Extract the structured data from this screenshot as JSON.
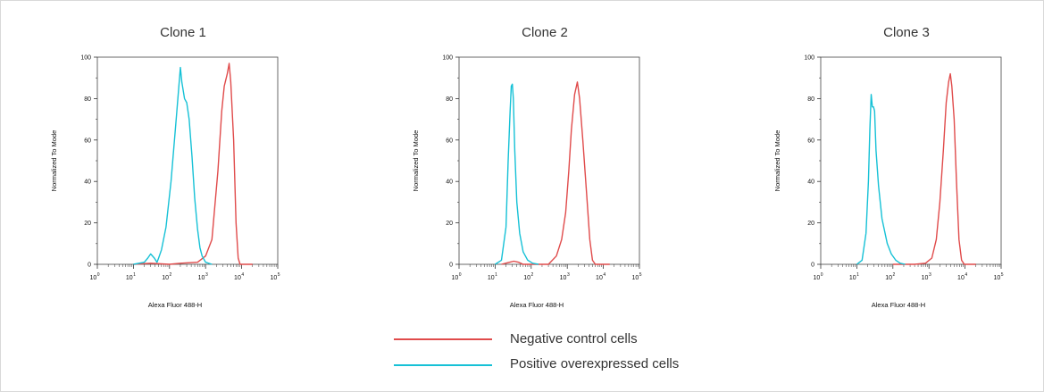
{
  "chart_data": [
    {
      "type": "line",
      "title": "Clone 1",
      "xlabel": "Alexa Fluor 488-H",
      "ylabel": "Normalized To Mode",
      "xscale": "log",
      "xlim": [
        1,
        100000
      ],
      "ylim": [
        0,
        100
      ],
      "x_ticks": [
        "10^0",
        "10^1",
        "10^2",
        "10^3",
        "10^4",
        "10^5"
      ],
      "y_ticks": [
        "0",
        "20",
        "40",
        "60",
        "80",
        "100"
      ],
      "series": [
        {
          "name": "Negative control cells",
          "color": "#e04b4b",
          "points": [
            [
              10,
              0
            ],
            [
              30,
              0.5
            ],
            [
              100,
              0
            ],
            [
              200,
              0.5
            ],
            [
              600,
              1
            ],
            [
              1000,
              4
            ],
            [
              1500,
              12
            ],
            [
              2200,
              45
            ],
            [
              2800,
              74
            ],
            [
              3300,
              86
            ],
            [
              4000,
              92
            ],
            [
              4500,
              97
            ],
            [
              5000,
              88
            ],
            [
              6000,
              60
            ],
            [
              7000,
              20
            ],
            [
              8000,
              3
            ],
            [
              9000,
              0
            ],
            [
              20000,
              0
            ]
          ]
        },
        {
          "name": "Positive overexpressed cells",
          "color": "#16c1d6",
          "points": [
            [
              10,
              0
            ],
            [
              20,
              1
            ],
            [
              25,
              3
            ],
            [
              30,
              5
            ],
            [
              38,
              3
            ],
            [
              45,
              1
            ],
            [
              50,
              3
            ],
            [
              60,
              7
            ],
            [
              80,
              18
            ],
            [
              110,
              40
            ],
            [
              150,
              68
            ],
            [
              180,
              85
            ],
            [
              200,
              95
            ],
            [
              220,
              88
            ],
            [
              260,
              80
            ],
            [
              300,
              78
            ],
            [
              350,
              70
            ],
            [
              420,
              52
            ],
            [
              500,
              32
            ],
            [
              600,
              17
            ],
            [
              700,
              8
            ],
            [
              800,
              4
            ],
            [
              1000,
              1
            ],
            [
              1500,
              0
            ]
          ]
        }
      ]
    },
    {
      "type": "line",
      "title": "Clone 2",
      "xlabel": "Alexa Fluor 488-H",
      "ylabel": "Normalized To Mode",
      "xscale": "log",
      "xlim": [
        1,
        100000
      ],
      "ylim": [
        0,
        100
      ],
      "x_ticks": [
        "10^0",
        "10^1",
        "10^2",
        "10^3",
        "10^4",
        "10^5"
      ],
      "y_ticks": [
        "0",
        "20",
        "40",
        "60",
        "80",
        "100"
      ],
      "series": [
        {
          "name": "Negative control cells",
          "color": "#e04b4b",
          "points": [
            [
              15,
              0
            ],
            [
              25,
              1
            ],
            [
              33,
              1.5
            ],
            [
              45,
              1
            ],
            [
              60,
              0
            ],
            [
              300,
              0
            ],
            [
              500,
              4
            ],
            [
              700,
              12
            ],
            [
              900,
              25
            ],
            [
              1100,
              45
            ],
            [
              1300,
              65
            ],
            [
              1600,
              82
            ],
            [
              1900,
              88
            ],
            [
              2200,
              80
            ],
            [
              2700,
              60
            ],
            [
              3400,
              35
            ],
            [
              4200,
              12
            ],
            [
              5000,
              2
            ],
            [
              6000,
              0
            ],
            [
              15000,
              0
            ]
          ]
        },
        {
          "name": "Positive overexpressed cells",
          "color": "#16c1d6",
          "points": [
            [
              10,
              0
            ],
            [
              15,
              2
            ],
            [
              20,
              18
            ],
            [
              23,
              50
            ],
            [
              26,
              74
            ],
            [
              28,
              86
            ],
            [
              30,
              87
            ],
            [
              32,
              80
            ],
            [
              35,
              55
            ],
            [
              40,
              30
            ],
            [
              48,
              15
            ],
            [
              60,
              6
            ],
            [
              80,
              2
            ],
            [
              110,
              0.5
            ],
            [
              160,
              0
            ]
          ]
        }
      ]
    },
    {
      "type": "line",
      "title": "Clone 3",
      "xlabel": "Alexa Fluor 488-H",
      "ylabel": "Normalized To Mode",
      "xscale": "log",
      "xlim": [
        1,
        100000
      ],
      "ylim": [
        0,
        100
      ],
      "x_ticks": [
        "10^0",
        "10^1",
        "10^2",
        "10^3",
        "10^4",
        "10^5"
      ],
      "y_ticks": [
        "0",
        "20",
        "40",
        "60",
        "80",
        "100"
      ],
      "series": [
        {
          "name": "Negative control cells",
          "color": "#e04b4b",
          "points": [
            [
              100,
              0
            ],
            [
              400,
              0
            ],
            [
              800,
              0.5
            ],
            [
              1200,
              3
            ],
            [
              1600,
              12
            ],
            [
              2000,
              30
            ],
            [
              2500,
              55
            ],
            [
              3000,
              78
            ],
            [
              3500,
              88
            ],
            [
              3900,
              92
            ],
            [
              4300,
              86
            ],
            [
              5000,
              70
            ],
            [
              5800,
              40
            ],
            [
              6800,
              12
            ],
            [
              8000,
              2
            ],
            [
              9500,
              0
            ],
            [
              20000,
              0
            ]
          ]
        },
        {
          "name": "Positive overexpressed cells",
          "color": "#16c1d6",
          "points": [
            [
              10,
              0
            ],
            [
              14,
              2
            ],
            [
              18,
              15
            ],
            [
              21,
              40
            ],
            [
              23,
              65
            ],
            [
              25,
              82
            ],
            [
              27,
              76
            ],
            [
              29,
              76
            ],
            [
              31,
              74
            ],
            [
              34,
              55
            ],
            [
              40,
              38
            ],
            [
              50,
              22
            ],
            [
              70,
              10
            ],
            [
              90,
              5
            ],
            [
              120,
              2
            ],
            [
              160,
              0.5
            ],
            [
              220,
              0
            ]
          ]
        }
      ]
    }
  ],
  "legend": {
    "items": [
      {
        "label": "Negative control cells",
        "color": "#e04b4b"
      },
      {
        "label": "Positive overexpressed cells",
        "color": "#16c1d6"
      }
    ]
  }
}
